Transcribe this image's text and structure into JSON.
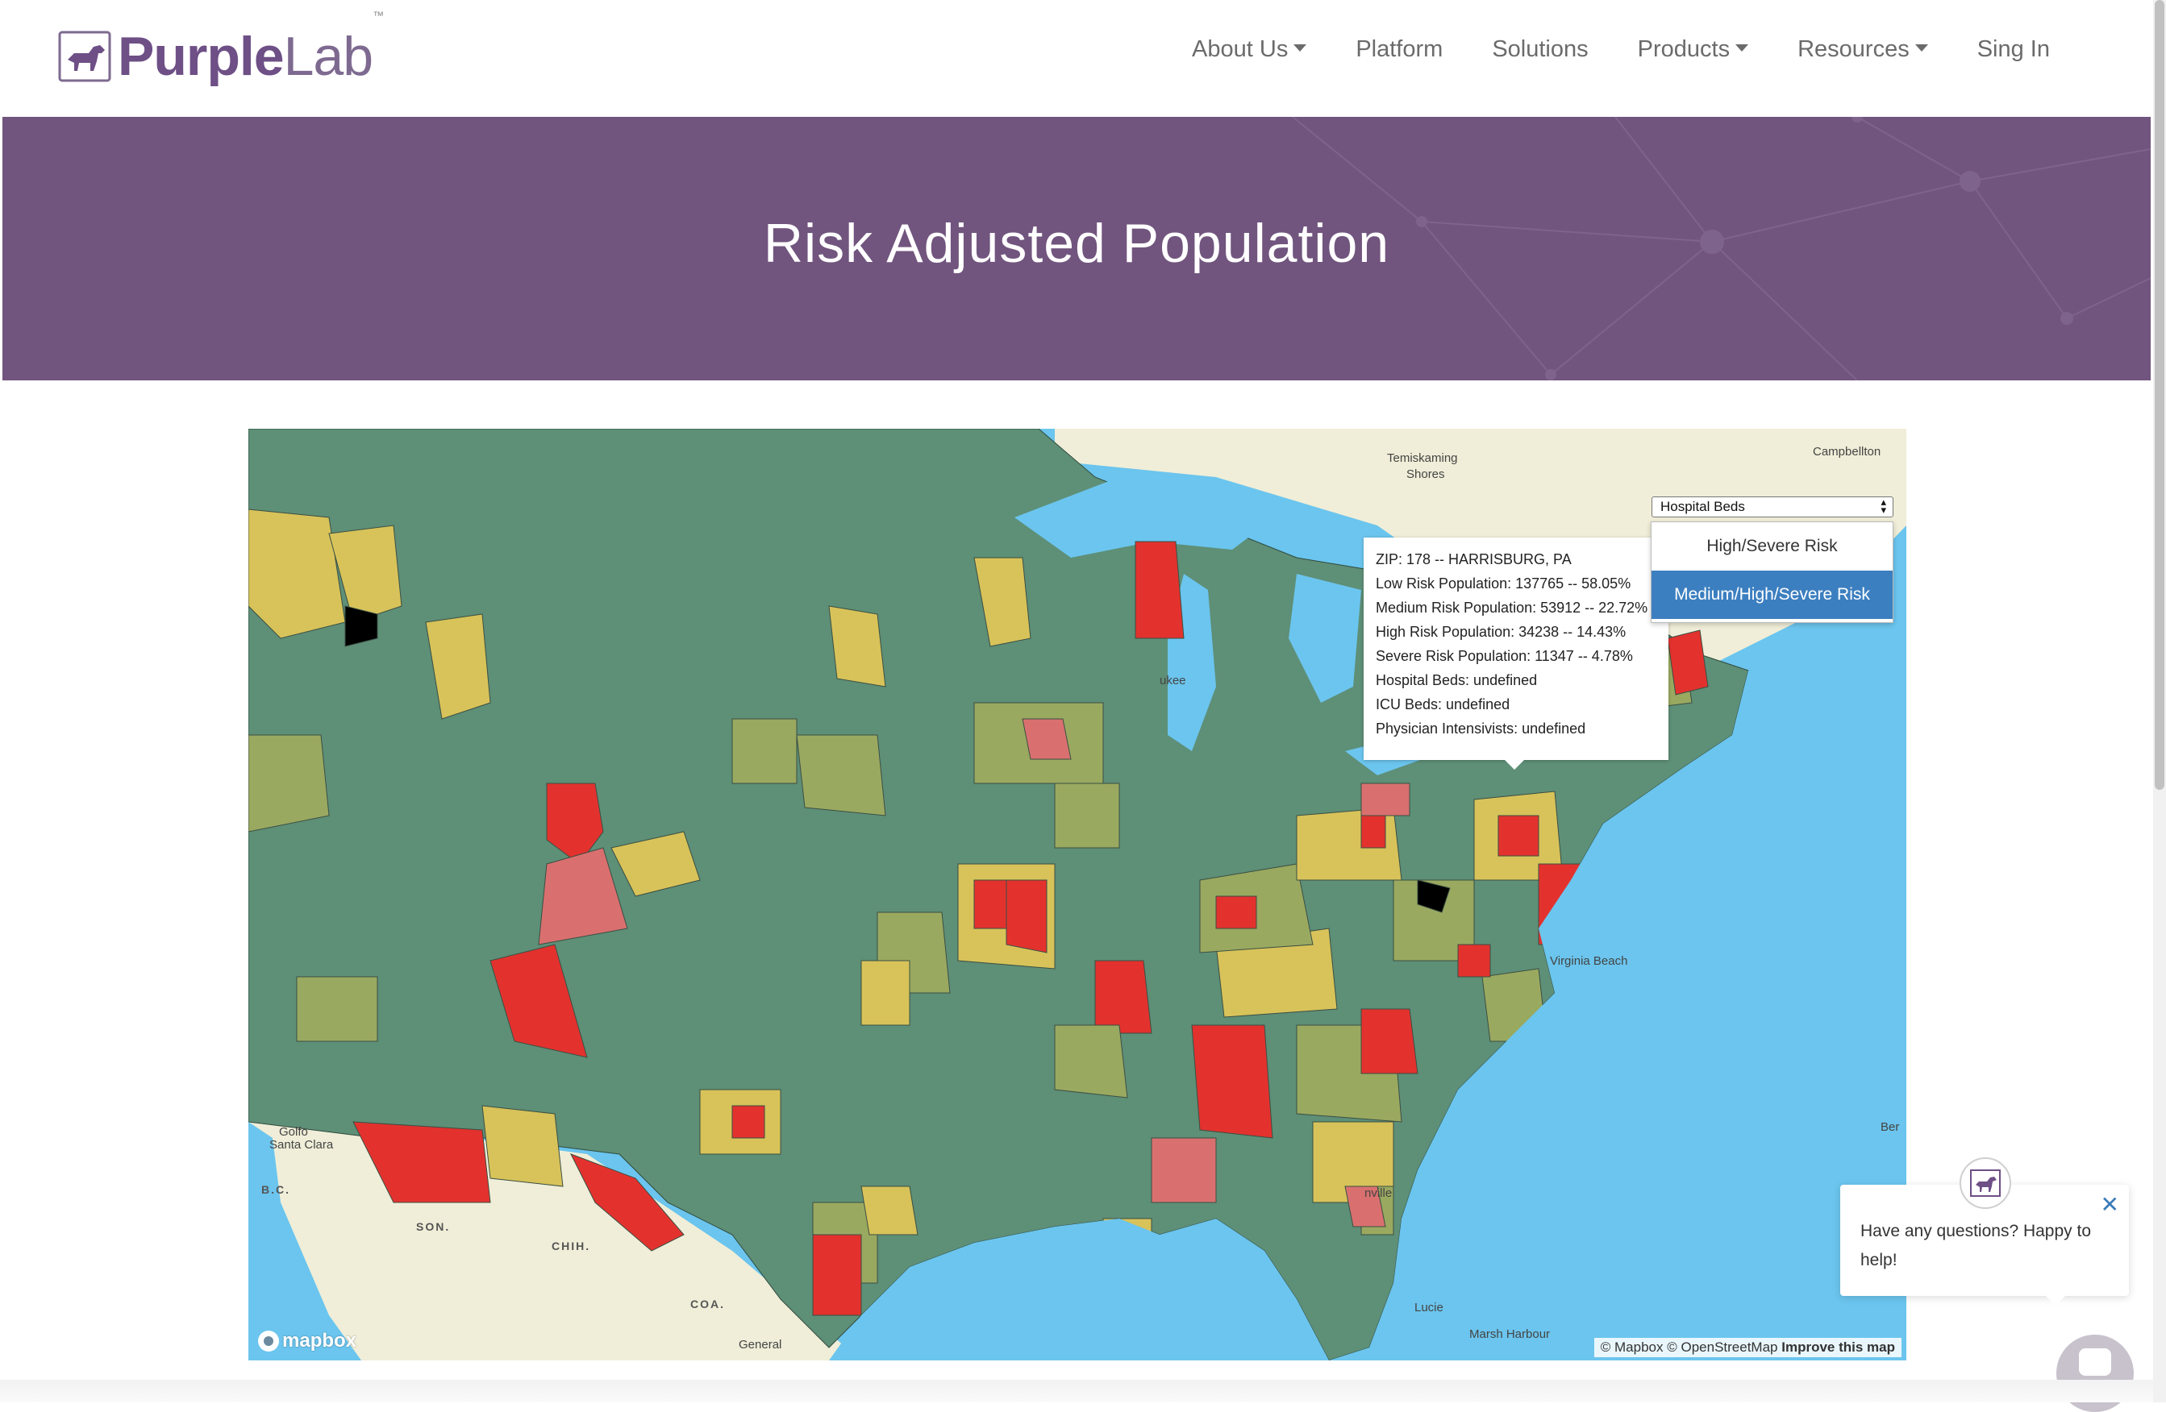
{
  "logo": {
    "part1": "Purple",
    "part2": "Lab",
    "tm": "™"
  },
  "nav": [
    {
      "label": "About Us",
      "dropdown": true
    },
    {
      "label": "Platform",
      "dropdown": false
    },
    {
      "label": "Solutions",
      "dropdown": false
    },
    {
      "label": "Products",
      "dropdown": true
    },
    {
      "label": "Resources",
      "dropdown": true
    },
    {
      "label": "Sing In",
      "dropdown": false
    }
  ],
  "banner": {
    "title": "Risk Adjusted Population"
  },
  "map": {
    "layer_select": {
      "value": "Hospital Beds"
    },
    "dropdown_options": [
      "High/Severe Risk",
      "Medium/High/Severe Risk"
    ],
    "dropdown_selected_index": 1,
    "tooltip": [
      "ZIP: 178 -- HARRISBURG, PA",
      "Low Risk Population: 137765 -- 58.05%",
      "Medium Risk Population: 53912 -- 22.72%",
      "High Risk Population: 34238 -- 14.43%",
      "Severe Risk Population: 11347 -- 4.78%",
      "Hospital Beds: undefined",
      "ICU Beds: undefined",
      "Physician Intensivists: undefined"
    ],
    "place_labels": {
      "temiskaming1": "Temiskaming",
      "temiskaming2": "Shores",
      "campbellton": "Campbellton",
      "ukee": "ukee",
      "virginia_beach": "Virginia Beach",
      "nville": "nville",
      "lucie": "Lucie",
      "marsh_harbour": "Marsh Harbour",
      "golfo": "Golfo",
      "santa_clara": "Santa Clara",
      "bc": "B.C.",
      "son": "SON.",
      "chih": "CHIH.",
      "coa": "COA.",
      "general": "General",
      "ber": "Ber"
    },
    "attribution": {
      "mapbox": "© Mapbox",
      "osm": "© OpenStreetMap",
      "improve": "Improve this map"
    },
    "logo": "mapbox",
    "colors": {
      "low": "#5e8f77",
      "low_medium": "#9aa960",
      "medium": "#d8c35a",
      "high": "#d9706f",
      "severe": "#e3322e",
      "water": "#6bc5ee",
      "land": "#f0eed8"
    }
  },
  "chat": {
    "message": "Have any questions? Happy to help!",
    "close_icon": "close-icon"
  },
  "colors": {
    "banner": "#71557e",
    "brand_purple": "#6e4f86",
    "dropdown_active": "#3c7fc0"
  }
}
